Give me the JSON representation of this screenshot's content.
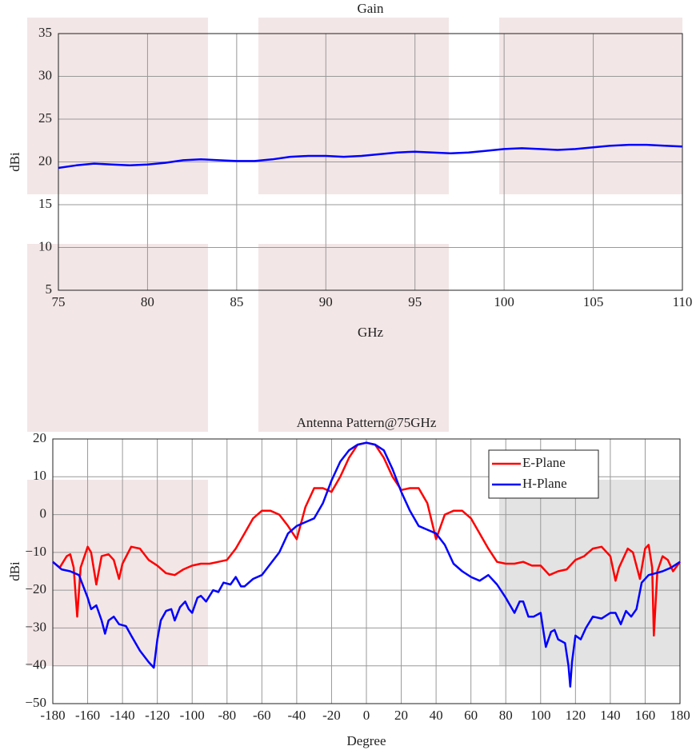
{
  "chart_data": [
    {
      "type": "line",
      "title": "Gain",
      "xlabel": "GHz",
      "ylabel": "dBi",
      "xlim": [
        75,
        110
      ],
      "ylim": [
        5,
        35
      ],
      "xticks": [
        75,
        80,
        85,
        90,
        95,
        100,
        105,
        110
      ],
      "yticks": [
        5,
        10,
        15,
        20,
        25,
        30,
        35
      ],
      "grid": true,
      "series": [
        {
          "color": "#0000ff",
          "x": [
            75,
            76,
            77,
            78,
            79,
            80,
            81,
            82,
            83,
            84,
            85,
            86,
            87,
            88,
            89,
            90,
            91,
            92,
            93,
            94,
            95,
            96,
            97,
            98,
            99,
            100,
            101,
            102,
            103,
            104,
            105,
            106,
            107,
            108,
            109,
            110
          ],
          "values": [
            19.3,
            19.6,
            19.8,
            19.7,
            19.6,
            19.7,
            19.9,
            20.2,
            20.3,
            20.2,
            20.1,
            20.1,
            20.3,
            20.6,
            20.7,
            20.7,
            20.6,
            20.7,
            20.9,
            21.1,
            21.2,
            21.1,
            21.0,
            21.1,
            21.3,
            21.5,
            21.6,
            21.5,
            21.4,
            21.5,
            21.7,
            21.9,
            22.0,
            22.0,
            21.9,
            21.8
          ]
        }
      ]
    },
    {
      "type": "line",
      "title": "Antenna Pattern@75GHz",
      "xlabel": "Degree",
      "ylabel": "dBi",
      "xlim": [
        -180,
        180
      ],
      "ylim": [
        -50,
        20
      ],
      "xticks": [
        -180,
        -160,
        -140,
        -120,
        -100,
        -80,
        -60,
        -40,
        -20,
        0,
        20,
        40,
        60,
        80,
        100,
        120,
        140,
        160,
        180
      ],
      "yticks": [
        {
          "value": -50,
          "label": "−50"
        },
        {
          "value": -40,
          "label": "−40"
        },
        {
          "value": -30,
          "label": "−30"
        },
        {
          "value": -20,
          "label": "−20"
        },
        {
          "value": -10,
          "label": "−10"
        },
        0,
        10,
        20
      ],
      "grid": true,
      "legend": "upper right",
      "series": [
        {
          "name": "E-Plane",
          "color": "#ff0000",
          "x": [
            -180,
            -176,
            -172,
            -170,
            -168,
            -166,
            -164,
            -160,
            -158,
            -155,
            -152,
            -148,
            -145,
            -142,
            -140,
            -135,
            -130,
            -125,
            -120,
            -115,
            -110,
            -105,
            -100,
            -95,
            -90,
            -85,
            -80,
            -75,
            -70,
            -65,
            -60,
            -55,
            -50,
            -45,
            -40,
            -35,
            -30,
            -25,
            -20,
            -15,
            -10,
            -5,
            0,
            5,
            10,
            15,
            20,
            25,
            30,
            35,
            40,
            45,
            50,
            55,
            60,
            65,
            70,
            75,
            80,
            85,
            90,
            95,
            100,
            105,
            110,
            115,
            120,
            125,
            130,
            135,
            140,
            143,
            145,
            150,
            153,
            157,
            160,
            162,
            164,
            165,
            167,
            170,
            173,
            176,
            180
          ],
          "values": [
            -12.5,
            -14,
            -11,
            -10.5,
            -14,
            -27,
            -14,
            -8.5,
            -10,
            -18.5,
            -11,
            -10.5,
            -12,
            -17,
            -13,
            -8.5,
            -9,
            -12,
            -13.5,
            -15.5,
            -16,
            -14.5,
            -13.5,
            -13,
            -13,
            -12.5,
            -12,
            -9,
            -5,
            -1,
            1,
            1,
            0,
            -3,
            -6.5,
            2,
            7,
            7,
            6,
            10,
            15,
            18.5,
            19,
            18.5,
            15,
            10,
            6.5,
            7,
            7,
            3,
            -6.5,
            0,
            1,
            1,
            -1,
            -5,
            -9,
            -12.5,
            -13,
            -13,
            -12.5,
            -13.5,
            -13.5,
            -16,
            -15,
            -14.5,
            -12,
            -11,
            -9,
            -8.5,
            -11,
            -17.5,
            -14,
            -9,
            -10,
            -17,
            -9,
            -8,
            -14,
            -32,
            -15,
            -11,
            -12,
            -15,
            -12.5
          ]
        },
        {
          "name": "H-Plane",
          "color": "#0000ff",
          "x": [
            -180,
            -175,
            -170,
            -165,
            -160,
            -158,
            -155,
            -152,
            -150,
            -148,
            -145,
            -142,
            -138,
            -135,
            -130,
            -125,
            -122,
            -120,
            -118,
            -115,
            -112,
            -110,
            -107,
            -104,
            -102,
            -100,
            -97,
            -95,
            -92,
            -88,
            -85,
            -82,
            -78,
            -75,
            -72,
            -70,
            -65,
            -60,
            -55,
            -50,
            -45,
            -40,
            -35,
            -30,
            -25,
            -20,
            -15,
            -10,
            -5,
            0,
            5,
            10,
            15,
            20,
            25,
            30,
            35,
            40,
            45,
            50,
            55,
            60,
            65,
            70,
            75,
            80,
            85,
            88,
            90,
            93,
            96,
            100,
            103,
            106,
            108,
            110,
            114,
            116,
            117,
            118,
            120,
            123,
            126,
            130,
            135,
            140,
            143,
            146,
            149,
            152,
            155,
            158,
            162,
            166,
            170,
            175,
            180
          ],
          "values": [
            -12.5,
            -14.5,
            -15,
            -16,
            -22,
            -25,
            -24,
            -28,
            -31.5,
            -28,
            -27,
            -29,
            -29.5,
            -32,
            -36,
            -39,
            -40.5,
            -33,
            -28,
            -25.5,
            -25,
            -28,
            -24.5,
            -23,
            -25,
            -26,
            -22,
            -21.5,
            -23,
            -20,
            -20.5,
            -18,
            -18.5,
            -16.5,
            -19,
            -19,
            -17,
            -16,
            -13,
            -10,
            -5,
            -3,
            -2,
            -1,
            3,
            9,
            14,
            17,
            18.5,
            19,
            18.5,
            17,
            12,
            6,
            1,
            -3,
            -4,
            -5,
            -8,
            -13,
            -15,
            -16.5,
            -17.5,
            -16,
            -18.5,
            -22,
            -26,
            -23,
            -23,
            -27,
            -27,
            -26,
            -35,
            -31,
            -30.5,
            -33,
            -34,
            -40,
            -45.5,
            -39,
            -32,
            -33,
            -30,
            -27,
            -27.5,
            -26,
            -26,
            -29,
            -25.5,
            -27,
            -25,
            -18,
            -16,
            -15.5,
            -15,
            -14,
            -12.5
          ]
        }
      ]
    }
  ]
}
